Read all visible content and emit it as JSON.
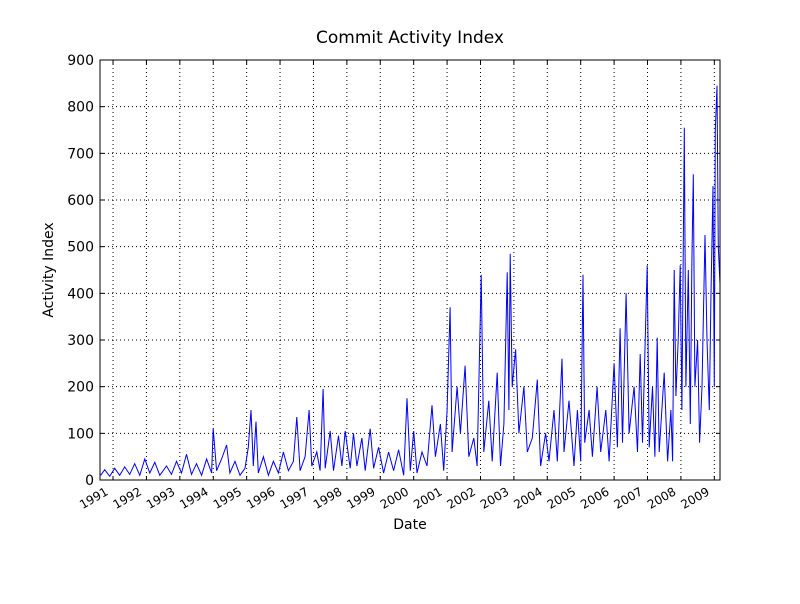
{
  "chart_data": {
    "type": "line",
    "title": "Commit Activity Index",
    "x_label": "Date",
    "y_label": "Activity Index",
    "xlim": [
      1990.61,
      2009.17
    ],
    "xticks": [
      1991,
      1992,
      1993,
      1994,
      1995,
      1996,
      1997,
      1998,
      1999,
      2000,
      2001,
      2002,
      2003,
      2004,
      2005,
      2006,
      2007,
      2008,
      2009
    ],
    "ylim": [
      0,
      900
    ],
    "yticks": [
      0,
      100,
      200,
      300,
      400,
      500,
      600,
      700,
      800,
      900
    ],
    "grid": true,
    "series": [
      {
        "name": "Activity Index",
        "color": "#0000ff",
        "x": [
          1990.63,
          1990.75,
          1990.9,
          1991.05,
          1991.2,
          1991.35,
          1991.5,
          1991.65,
          1991.8,
          1991.95,
          1992.1,
          1992.25,
          1992.4,
          1992.6,
          1992.75,
          1992.9,
          1993.05,
          1993.2,
          1993.35,
          1993.5,
          1993.65,
          1993.8,
          1993.95,
          1994.0,
          1994.1,
          1994.25,
          1994.4,
          1994.5,
          1994.65,
          1994.8,
          1994.95,
          1995.05,
          1995.13,
          1995.2,
          1995.28,
          1995.35,
          1995.5,
          1995.65,
          1995.8,
          1995.95,
          1996.1,
          1996.25,
          1996.4,
          1996.5,
          1996.6,
          1996.75,
          1996.87,
          1996.95,
          1997.1,
          1997.2,
          1997.29,
          1997.35,
          1997.5,
          1997.6,
          1997.75,
          1997.85,
          1997.95,
          1998.1,
          1998.2,
          1998.3,
          1998.45,
          1998.55,
          1998.7,
          1998.8,
          1998.95,
          1999.1,
          1999.25,
          1999.4,
          1999.55,
          1999.7,
          1999.8,
          1999.9,
          2000.0,
          2000.1,
          2000.25,
          2000.4,
          2000.55,
          2000.65,
          2000.8,
          2000.9,
          2001.0,
          2001.09,
          2001.15,
          2001.3,
          2001.4,
          2001.54,
          2001.65,
          2001.8,
          2001.9,
          2002.02,
          2002.1,
          2002.25,
          2002.35,
          2002.5,
          2002.6,
          2002.7,
          2002.8,
          2002.85,
          2002.89,
          2002.95,
          2003.05,
          2003.15,
          2003.3,
          2003.4,
          2003.55,
          2003.7,
          2003.8,
          2003.95,
          2004.05,
          2004.2,
          2004.3,
          2004.44,
          2004.5,
          2004.65,
          2004.8,
          2004.9,
          2005.0,
          2005.07,
          2005.12,
          2005.25,
          2005.35,
          2005.49,
          2005.6,
          2005.75,
          2005.85,
          2006.0,
          2006.1,
          2006.18,
          2006.25,
          2006.36,
          2006.45,
          2006.6,
          2006.7,
          2006.78,
          2006.85,
          2006.99,
          2007.05,
          2007.15,
          2007.22,
          2007.29,
          2007.35,
          2007.5,
          2007.6,
          2007.7,
          2007.75,
          2007.8,
          2007.85,
          2007.92,
          2007.98,
          2008.03,
          2008.1,
          2008.15,
          2008.22,
          2008.28,
          2008.33,
          2008.37,
          2008.42,
          2008.5,
          2008.56,
          2008.63,
          2008.72,
          2008.78,
          2008.85,
          2008.9,
          2008.96,
          2009.0,
          2009.03,
          2009.08,
          2009.12,
          2009.17
        ],
        "values": [
          10,
          22,
          8,
          25,
          10,
          28,
          12,
          35,
          10,
          45,
          15,
          38,
          10,
          30,
          12,
          40,
          15,
          55,
          12,
          35,
          10,
          45,
          15,
          110,
          20,
          45,
          75,
          15,
          40,
          10,
          25,
          70,
          150,
          30,
          125,
          15,
          50,
          10,
          40,
          15,
          60,
          20,
          40,
          135,
          20,
          50,
          150,
          30,
          60,
          20,
          195,
          25,
          105,
          20,
          95,
          30,
          105,
          25,
          100,
          30,
          90,
          20,
          110,
          25,
          70,
          15,
          60,
          20,
          65,
          10,
          175,
          20,
          105,
          15,
          60,
          30,
          160,
          50,
          120,
          20,
          150,
          370,
          60,
          200,
          100,
          245,
          50,
          90,
          30,
          440,
          60,
          170,
          40,
          230,
          30,
          120,
          445,
          150,
          485,
          200,
          280,
          100,
          200,
          60,
          90,
          215,
          30,
          100,
          40,
          150,
          40,
          260,
          60,
          170,
          30,
          150,
          40,
          440,
          80,
          150,
          50,
          200,
          60,
          150,
          40,
          250,
          70,
          325,
          80,
          400,
          100,
          200,
          60,
          270,
          80,
          460,
          70,
          200,
          50,
          305,
          60,
          230,
          40,
          150,
          40,
          450,
          180,
          300,
          460,
          150,
          755,
          200,
          450,
          120,
          470,
          655,
          200,
          300,
          80,
          200,
          525,
          300,
          150,
          400,
          630,
          200,
          750,
          845,
          500,
          420
        ]
      }
    ]
  }
}
